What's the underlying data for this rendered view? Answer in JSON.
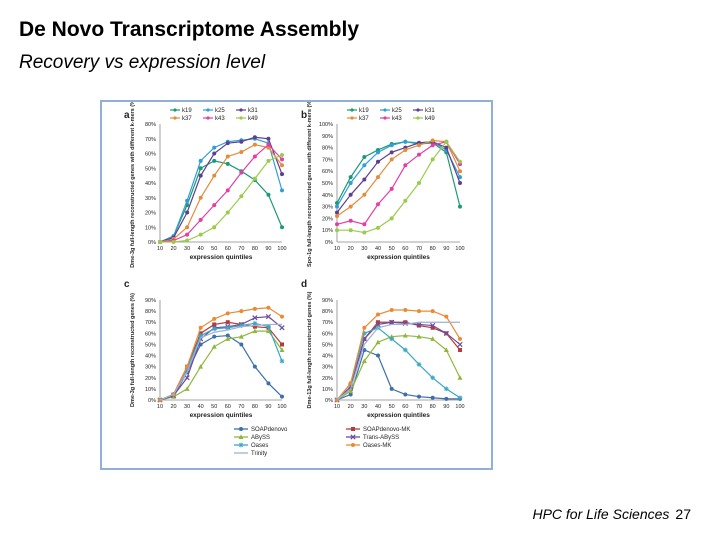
{
  "slide": {
    "title": "De Novo Transcriptome Assembly",
    "subtitle": "Recovery vs expression level",
    "footer_text": "HPC for Life Sciences",
    "page_number": "27"
  },
  "figure_legend": {
    "series": [
      {
        "name": "SOAPdenovo",
        "color": "#3d6fa9",
        "marker": "circle"
      },
      {
        "name": "SOAPdenovo-MK",
        "color": "#b53c3c",
        "marker": "square"
      },
      {
        "name": "ABySS",
        "color": "#8db83b",
        "marker": "triangle"
      },
      {
        "name": "Trans-ABySS",
        "color": "#6e4c9a",
        "marker": "x"
      },
      {
        "name": "Oases",
        "color": "#3ba7c4",
        "marker": "star"
      },
      {
        "name": "Oases-MK",
        "color": "#ea8b34",
        "marker": "circle"
      },
      {
        "name": "Trinity",
        "color": "#9cb1d6",
        "marker": "line"
      }
    ]
  },
  "chart_data": [
    {
      "type": "line",
      "panel": "a",
      "title": "",
      "xlabel": "expression quintiles",
      "ylabel": "Dme-3g full-length reconstructed genes with different k-mers (%)",
      "x": [
        10,
        20,
        30,
        40,
        50,
        60,
        70,
        80,
        90,
        100
      ],
      "ylim": [
        0,
        80
      ],
      "yticks": [
        "0%",
        "10%",
        "20%",
        "30%",
        "40%",
        "50%",
        "60%",
        "70%",
        "80%"
      ],
      "legend": [
        "k19",
        "k25",
        "k31",
        "k37",
        "k43",
        "k49"
      ],
      "series": [
        {
          "name": "k19",
          "color": "#1a9a76",
          "values": [
            0,
            4,
            25,
            50,
            55,
            53,
            48,
            42,
            32,
            10
          ]
        },
        {
          "name": "k25",
          "color": "#2f9fd6",
          "values": [
            0,
            4,
            28,
            55,
            64,
            68,
            69,
            70,
            67,
            35
          ]
        },
        {
          "name": "k31",
          "color": "#5d3f8f",
          "values": [
            0,
            3,
            20,
            45,
            60,
            67,
            68,
            71,
            70,
            46
          ]
        },
        {
          "name": "k37",
          "color": "#e58b3c",
          "values": [
            0,
            2,
            10,
            30,
            45,
            58,
            61,
            66,
            64,
            52
          ]
        },
        {
          "name": "k43",
          "color": "#e23ea6",
          "values": [
            0,
            1,
            5,
            15,
            25,
            35,
            47,
            58,
            66,
            56
          ]
        },
        {
          "name": "k49",
          "color": "#9acb4a",
          "values": [
            0,
            0,
            1,
            5,
            10,
            20,
            31,
            43,
            55,
            59
          ]
        }
      ]
    },
    {
      "type": "line",
      "panel": "b",
      "title": "",
      "xlabel": "expression quintiles",
      "ylabel": "Spo-1g full-length reconstructed genes with different k-mers (%)",
      "x": [
        10,
        20,
        30,
        40,
        50,
        60,
        70,
        80,
        90,
        100
      ],
      "ylim": [
        0,
        100
      ],
      "yticks": [
        "0%",
        "10%",
        "20%",
        "30%",
        "40%",
        "50%",
        "60%",
        "70%",
        "80%",
        "90%",
        "100%"
      ],
      "legend": [
        "k19",
        "k25",
        "k31",
        "k37",
        "k43",
        "k49"
      ],
      "series": [
        {
          "name": "k19",
          "color": "#1a9a76",
          "values": [
            33,
            55,
            72,
            78,
            83,
            85,
            83,
            84,
            76,
            30
          ]
        },
        {
          "name": "k25",
          "color": "#2f9fd6",
          "values": [
            30,
            50,
            65,
            76,
            82,
            85,
            84,
            85,
            78,
            55
          ]
        },
        {
          "name": "k31",
          "color": "#5d3f8f",
          "values": [
            25,
            40,
            53,
            68,
            76,
            80,
            84,
            85,
            80,
            50
          ]
        },
        {
          "name": "k37",
          "color": "#e58b3c",
          "values": [
            22,
            30,
            40,
            55,
            70,
            78,
            82,
            86,
            85,
            60
          ]
        },
        {
          "name": "k43",
          "color": "#e23ea6",
          "values": [
            15,
            18,
            15,
            32,
            45,
            65,
            74,
            82,
            85,
            66
          ]
        },
        {
          "name": "k49",
          "color": "#9acb4a",
          "values": [
            10,
            10,
            8,
            12,
            20,
            35,
            50,
            70,
            85,
            68
          ]
        }
      ]
    },
    {
      "type": "line",
      "panel": "c",
      "title": "",
      "xlabel": "expression quintiles",
      "ylabel": "Dme-3g full-length reconstructed genes (%)",
      "x": [
        10,
        20,
        30,
        40,
        50,
        60,
        70,
        80,
        90,
        100
      ],
      "ylim": [
        0,
        90
      ],
      "yticks": [
        "0%",
        "10%",
        "20%",
        "30%",
        "40%",
        "50%",
        "60%",
        "70%",
        "80%",
        "90%"
      ],
      "series": [
        {
          "name": "SOAPdenovo",
          "values": [
            0,
            3,
            25,
            50,
            57,
            58,
            50,
            30,
            15,
            3
          ]
        },
        {
          "name": "SOAPdenovo-MK",
          "values": [
            0,
            5,
            30,
            60,
            68,
            70,
            68,
            66,
            65,
            50
          ]
        },
        {
          "name": "ABySS",
          "values": [
            0,
            3,
            10,
            30,
            48,
            55,
            57,
            62,
            62,
            45
          ]
        },
        {
          "name": "Trans-ABySS",
          "values": [
            0,
            4,
            20,
            55,
            65,
            66,
            68,
            74,
            75,
            65
          ]
        },
        {
          "name": "Oases",
          "values": [
            0,
            5,
            28,
            58,
            64,
            65,
            67,
            69,
            66,
            35
          ]
        },
        {
          "name": "Oases-MK",
          "values": [
            0,
            5,
            30,
            65,
            73,
            78,
            80,
            82,
            83,
            75
          ]
        },
        {
          "name": "Trinity",
          "values": [
            0,
            5,
            25,
            56,
            61,
            63,
            66,
            67,
            68,
            68
          ]
        }
      ]
    },
    {
      "type": "line",
      "panel": "d",
      "title": "",
      "xlabel": "expression quintiles",
      "ylabel": "Dme-13g full-length reconstructed genes (%)",
      "x": [
        10,
        20,
        30,
        40,
        50,
        60,
        70,
        80,
        90,
        100
      ],
      "ylim": [
        0,
        90
      ],
      "yticks": [
        "0%",
        "10%",
        "20%",
        "30%",
        "40%",
        "50%",
        "60%",
        "70%",
        "80%",
        "90%"
      ],
      "series": [
        {
          "name": "SOAPdenovo",
          "values": [
            0,
            5,
            45,
            40,
            10,
            5,
            3,
            2,
            1,
            1
          ]
        },
        {
          "name": "SOAPdenovo-MK",
          "values": [
            0,
            10,
            55,
            70,
            70,
            70,
            67,
            65,
            60,
            45
          ]
        },
        {
          "name": "ABySS",
          "values": [
            0,
            8,
            35,
            52,
            57,
            58,
            57,
            55,
            45,
            20
          ]
        },
        {
          "name": "Trans-ABySS",
          "values": [
            0,
            12,
            55,
            68,
            70,
            69,
            68,
            67,
            60,
            50
          ]
        },
        {
          "name": "Oases",
          "values": [
            0,
            15,
            60,
            65,
            55,
            45,
            32,
            20,
            10,
            2
          ]
        },
        {
          "name": "Oases-MK",
          "values": [
            0,
            15,
            65,
            77,
            81,
            81,
            80,
            80,
            75,
            55
          ]
        },
        {
          "name": "Trinity",
          "values": [
            0,
            10,
            50,
            65,
            68,
            68,
            70,
            70,
            70,
            70
          ]
        }
      ]
    }
  ]
}
